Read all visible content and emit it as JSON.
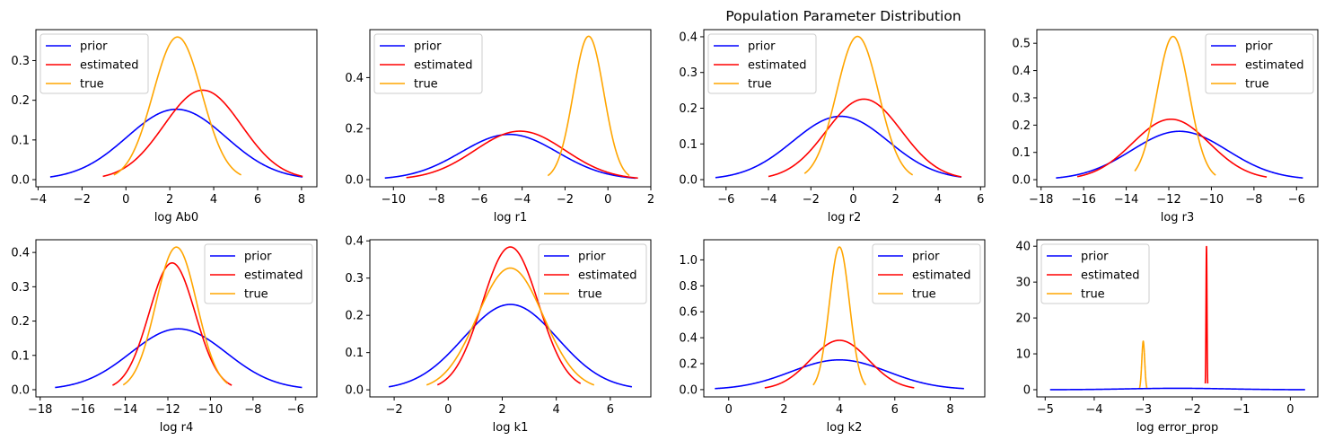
{
  "title": "Population Parameter Distribution",
  "legend_labels": [
    "prior",
    "estimated",
    "true"
  ],
  "colors": {
    "prior": "#0000ff",
    "estimated": "#ff0000",
    "true": "#ffa500"
  },
  "chart_data": [
    {
      "type": "line",
      "xlabel": "log Ab0",
      "legend": "top-left",
      "xlim": [
        -4.1,
        8.7
      ],
      "ylim": [
        -0.018,
        0.378
      ],
      "xticks": [
        -4,
        -2,
        0,
        2,
        4,
        6,
        8
      ],
      "yticks": [
        0.0,
        0.1,
        0.2,
        0.3
      ],
      "series": [
        {
          "name": "prior",
          "mu": 2.3,
          "sigma": 2.25,
          "x_range": [
            -3.45,
            8.05
          ]
        },
        {
          "name": "estimated",
          "mu": 3.5,
          "sigma": 1.77,
          "x_range": [
            -1.05,
            8.05
          ]
        },
        {
          "name": "true",
          "mu": 2.35,
          "sigma": 1.11,
          "x_range": [
            -0.55,
            5.25
          ]
        }
      ]
    },
    {
      "type": "line",
      "xlabel": "log r1",
      "legend": "top-left",
      "xlim": [
        -11.1,
        2.0
      ],
      "ylim": [
        -0.028,
        0.588
      ],
      "xticks": [
        -10,
        -8,
        -6,
        -4,
        -2,
        0,
        2
      ],
      "yticks": [
        0.0,
        0.2,
        0.4
      ],
      "series": [
        {
          "name": "prior",
          "mu": -4.6,
          "sigma": 2.25,
          "x_range": [
            -10.4,
            1.3
          ]
        },
        {
          "name": "estimated",
          "mu": -4.1,
          "sigma": 2.1,
          "x_range": [
            -9.4,
            1.4
          ]
        },
        {
          "name": "true",
          "mu": -0.9,
          "sigma": 0.71,
          "x_range": [
            -2.8,
            1.0
          ]
        }
      ]
    },
    {
      "type": "line",
      "xlabel": "log r2",
      "legend": "top-left",
      "xlim": [
        -7.05,
        6.2
      ],
      "ylim": [
        -0.02,
        0.42
      ],
      "xticks": [
        -6,
        -4,
        -2,
        0,
        2,
        4,
        6
      ],
      "yticks": [
        0.0,
        0.1,
        0.2,
        0.3,
        0.4
      ],
      "series": [
        {
          "name": "prior",
          "mu": -0.6,
          "sigma": 2.25,
          "x_range": [
            -6.5,
            5.1
          ]
        },
        {
          "name": "estimated",
          "mu": 0.5,
          "sigma": 1.77,
          "x_range": [
            -4.0,
            5.1
          ]
        },
        {
          "name": "true",
          "mu": 0.2,
          "sigma": 0.995,
          "x_range": [
            -2.3,
            2.8
          ]
        }
      ]
    },
    {
      "type": "line",
      "xlabel": "log r3",
      "legend": "top-right",
      "xlim": [
        -18.2,
        -5.0
      ],
      "ylim": [
        -0.026,
        0.55
      ],
      "xticks": [
        -18,
        -16,
        -14,
        -12,
        -10,
        -8,
        -6
      ],
      "yticks": [
        0.0,
        0.1,
        0.2,
        0.3,
        0.4,
        0.5
      ],
      "series": [
        {
          "name": "prior",
          "mu": -11.5,
          "sigma": 2.25,
          "x_range": [
            -17.3,
            -5.7
          ]
        },
        {
          "name": "estimated",
          "mu": -11.9,
          "sigma": 1.8,
          "x_range": [
            -16.3,
            -7.4
          ]
        },
        {
          "name": "true",
          "mu": -11.8,
          "sigma": 0.76,
          "x_range": [
            -13.6,
            -9.8
          ]
        }
      ]
    },
    {
      "type": "line",
      "xlabel": "log r4",
      "legend": "top-right",
      "xlim": [
        -18.2,
        -5.0
      ],
      "ylim": [
        -0.021,
        0.437
      ],
      "xticks": [
        -18,
        -16,
        -14,
        -12,
        -10,
        -8,
        -6
      ],
      "yticks": [
        0.0,
        0.1,
        0.2,
        0.3,
        0.4
      ],
      "series": [
        {
          "name": "prior",
          "mu": -11.5,
          "sigma": 2.25,
          "x_range": [
            -17.3,
            -5.7
          ]
        },
        {
          "name": "estimated",
          "mu": -11.8,
          "sigma": 1.08,
          "x_range": [
            -14.6,
            -9.0
          ]
        },
        {
          "name": "true",
          "mu": -11.6,
          "sigma": 0.96,
          "x_range": [
            -14.1,
            -9.2
          ]
        }
      ]
    },
    {
      "type": "line",
      "xlabel": "log k1",
      "legend": "top-right",
      "xlim": [
        -2.9,
        7.5
      ],
      "ylim": [
        -0.019,
        0.403
      ],
      "xticks": [
        -2,
        0,
        2,
        4,
        6
      ],
      "yticks": [
        0.0,
        0.1,
        0.2,
        0.3,
        0.4
      ],
      "series": [
        {
          "name": "prior",
          "mu": 2.3,
          "sigma": 1.74,
          "x_range": [
            -2.2,
            6.8
          ]
        },
        {
          "name": "estimated",
          "mu": 2.3,
          "sigma": 1.04,
          "x_range": [
            -0.4,
            4.9
          ]
        },
        {
          "name": "true",
          "mu": 2.3,
          "sigma": 1.22,
          "x_range": [
            -0.8,
            5.4
          ]
        }
      ]
    },
    {
      "type": "line",
      "xlabel": "log k2",
      "legend": "top-right",
      "xlim": [
        -0.9,
        9.25
      ],
      "ylim": [
        -0.056,
        1.155
      ],
      "xticks": [
        0,
        2,
        4,
        6,
        8
      ],
      "yticks": [
        0.0,
        0.2,
        0.4,
        0.6,
        0.8,
        1.0
      ],
      "series": [
        {
          "name": "prior",
          "mu": 4.0,
          "sigma": 1.74,
          "x_range": [
            -0.5,
            8.5
          ]
        },
        {
          "name": "estimated",
          "mu": 4.0,
          "sigma": 1.05,
          "x_range": [
            1.3,
            6.7
          ]
        },
        {
          "name": "true",
          "mu": 4.0,
          "sigma": 0.363,
          "x_range": [
            3.05,
            4.95
          ]
        }
      ]
    },
    {
      "type": "line",
      "xlabel": "log error_prop",
      "legend": "top-left",
      "xlim": [
        -5.17,
        0.56
      ],
      "ylim": [
        -2.0,
        41.8
      ],
      "xticks": [
        -5,
        -4,
        -3,
        -2,
        -1,
        0
      ],
      "yticks": [
        0,
        10,
        20,
        30,
        40
      ],
      "series": [
        {
          "name": "prior",
          "mu": -2.3,
          "sigma": 1.0,
          "x_range": [
            -4.9,
            0.3
          ]
        },
        {
          "name": "estimated",
          "mu": -1.71,
          "sigma": 0.01,
          "x_range": [
            -1.735,
            -1.685
          ]
        },
        {
          "name": "true",
          "mu": -3.0,
          "sigma": 0.0295,
          "x_range": [
            -3.075,
            -2.925
          ]
        }
      ]
    }
  ]
}
